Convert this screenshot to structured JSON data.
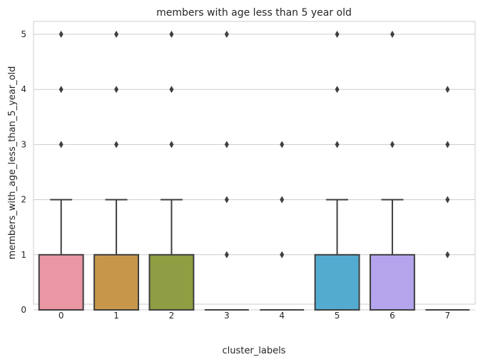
{
  "chart_data": {
    "type": "boxplot",
    "title": "members with age less than 5 year old",
    "xlabel": "cluster_labels",
    "ylabel": "members_with_age_less_than_5_year_old",
    "ylim": [
      -0.3,
      5.3
    ],
    "yticks": [
      0,
      1,
      2,
      3,
      4,
      5
    ],
    "grid": "horizontal",
    "categories": [
      "0",
      "1",
      "2",
      "3",
      "4",
      "5",
      "6",
      "7"
    ],
    "boxes": [
      {
        "label": "0",
        "whisker_low": 0,
        "q1": 0,
        "median": 0,
        "q3": 1,
        "whisker_high": 2,
        "outliers": [
          3,
          4,
          5
        ],
        "color": "#ea96a3"
      },
      {
        "label": "1",
        "whisker_low": 0,
        "q1": 0,
        "median": 0,
        "q3": 1,
        "whisker_high": 2,
        "outliers": [
          3,
          4,
          5
        ],
        "color": "#c8964a"
      },
      {
        "label": "2",
        "whisker_low": 0,
        "q1": 0,
        "median": 0,
        "q3": 1,
        "whisker_high": 2,
        "outliers": [
          3,
          4,
          5
        ],
        "color": "#8f9d43"
      },
      {
        "label": "3",
        "whisker_low": 0,
        "q1": 0,
        "median": 0,
        "q3": 0,
        "whisker_high": 0,
        "outliers": [
          1,
          2,
          3,
          5
        ],
        "color": "#59a77e"
      },
      {
        "label": "4",
        "whisker_low": 0,
        "q1": 0,
        "median": 0,
        "q3": 0,
        "whisker_high": 0,
        "outliers": [
          1,
          2,
          3
        ],
        "color": "#5aa59b"
      },
      {
        "label": "5",
        "whisker_low": 0,
        "q1": 0,
        "median": 0,
        "q3": 1,
        "whisker_high": 2,
        "outliers": [
          3,
          4,
          5
        ],
        "color": "#54abd0"
      },
      {
        "label": "6",
        "whisker_low": 0,
        "q1": 0,
        "median": 0,
        "q3": 1,
        "whisker_high": 2,
        "outliers": [
          3,
          5
        ],
        "color": "#b4a4ec"
      },
      {
        "label": "7",
        "whisker_low": 0,
        "q1": 0,
        "median": 0,
        "q3": 0,
        "whisker_high": 0,
        "outliers": [
          1,
          2,
          3,
          4
        ],
        "color": "#e490d8"
      }
    ]
  }
}
